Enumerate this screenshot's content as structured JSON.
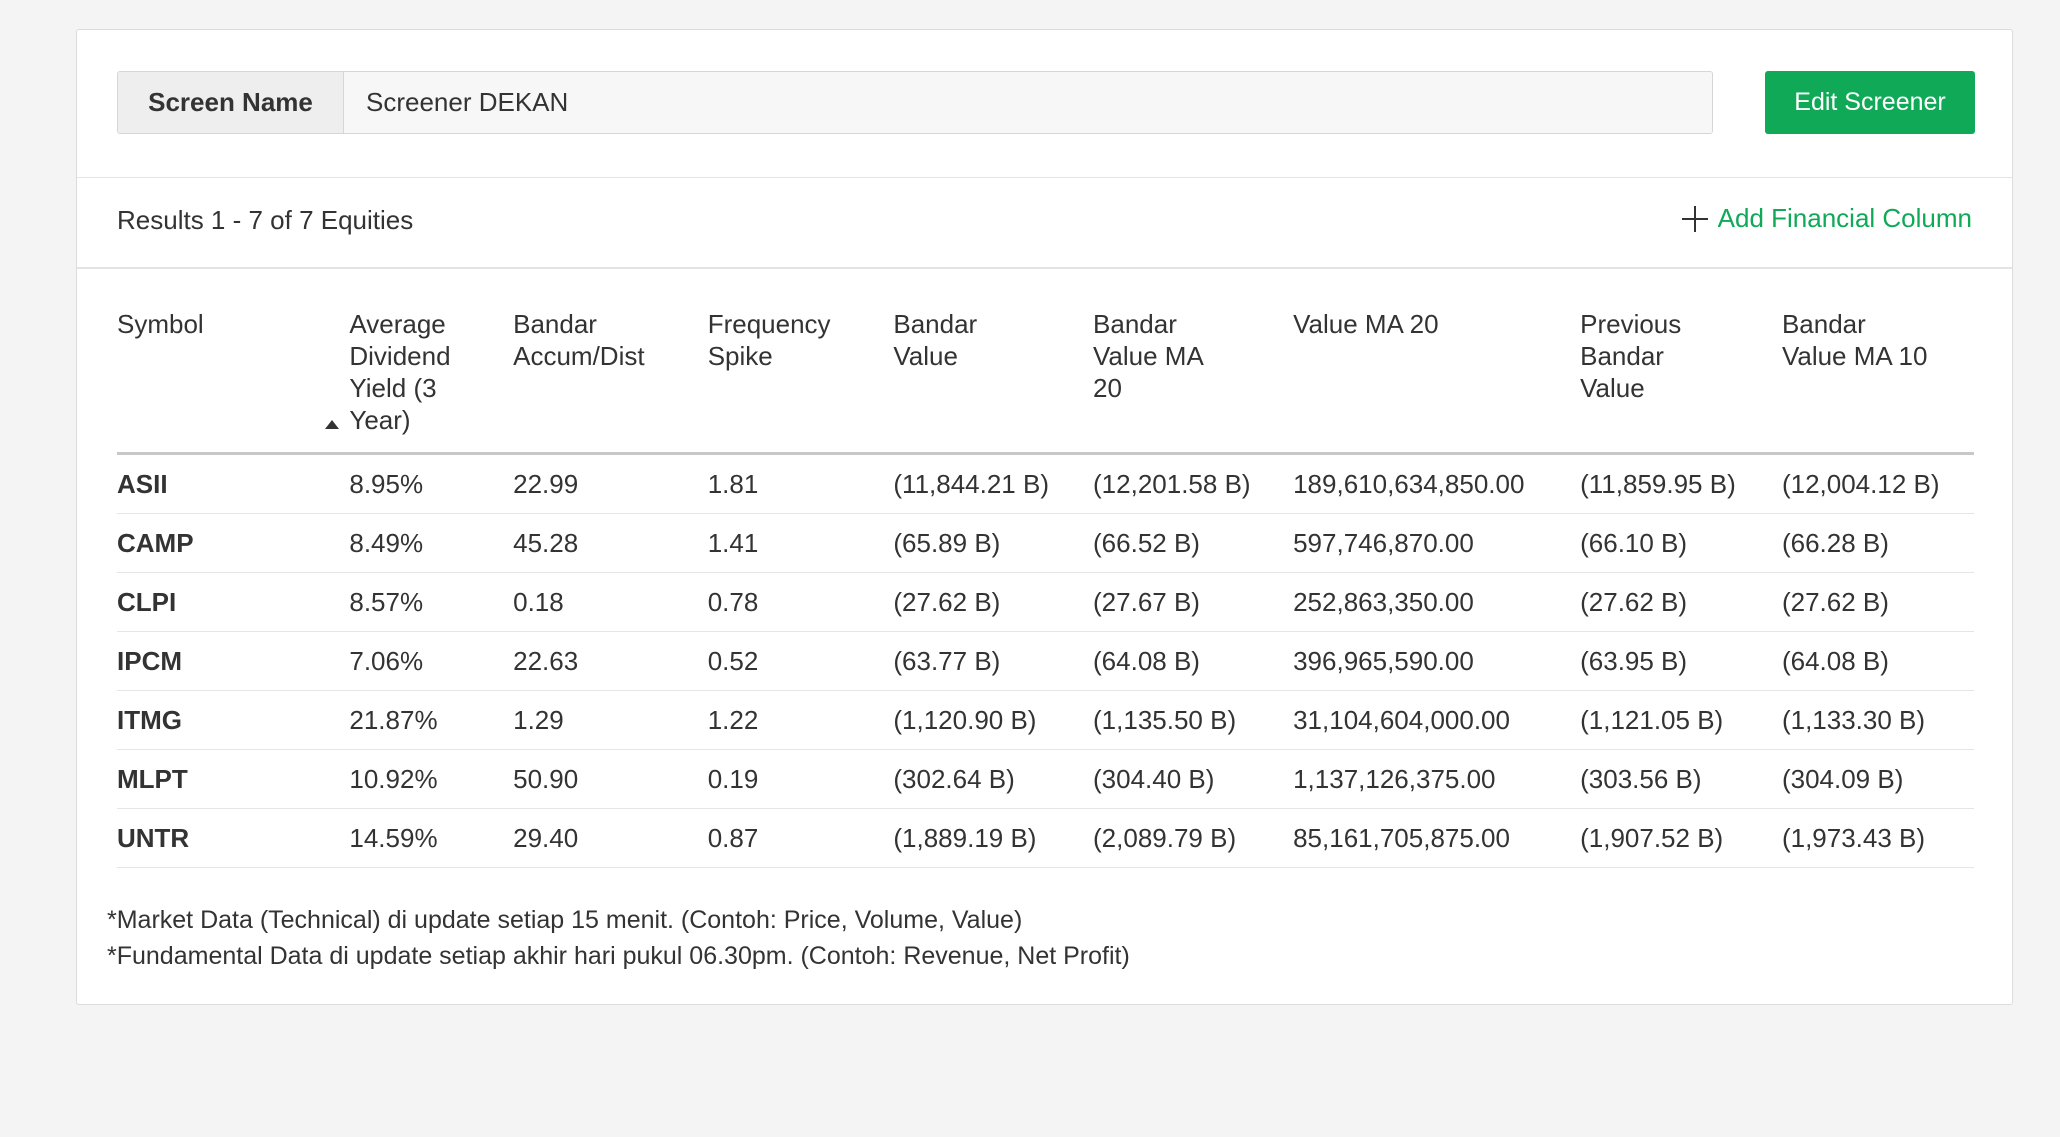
{
  "header": {
    "screen_name_label": "Screen Name",
    "screen_name_value": "Screener DEKAN",
    "edit_button": "Edit Screener"
  },
  "toolbar": {
    "results_text": "Results 1 - 7 of 7 Equities",
    "add_column_label": "Add Financial Column"
  },
  "table": {
    "columns": [
      "Symbol",
      "Average Dividend Yield (3 Year)",
      "Bandar Accum/Dist",
      "Frequency Spike",
      "Bandar Value",
      "Bandar Value MA 20",
      "Value MA 20",
      "Previous Bandar Value",
      "Bandar Value MA 10"
    ],
    "rows": [
      [
        "ASII",
        "8.95%",
        "22.99",
        "1.81",
        "(11,844.21 B)",
        "(12,201.58 B)",
        "189,610,634,850.00",
        "(11,859.95 B)",
        "(12,004.12 B)"
      ],
      [
        "CAMP",
        "8.49%",
        "45.28",
        "1.41",
        "(65.89 B)",
        "(66.52 B)",
        "597,746,870.00",
        "(66.10 B)",
        "(66.28 B)"
      ],
      [
        "CLPI",
        "8.57%",
        "0.18",
        "0.78",
        "(27.62 B)",
        "(27.67 B)",
        "252,863,350.00",
        "(27.62 B)",
        "(27.62 B)"
      ],
      [
        "IPCM",
        "7.06%",
        "22.63",
        "0.52",
        "(63.77 B)",
        "(64.08 B)",
        "396,965,590.00",
        "(63.95 B)",
        "(64.08 B)"
      ],
      [
        "ITMG",
        "21.87%",
        "1.29",
        "1.22",
        "(1,120.90 B)",
        "(1,135.50 B)",
        "31,104,604,000.00",
        "(1,121.05 B)",
        "(1,133.30 B)"
      ],
      [
        "MLPT",
        "10.92%",
        "50.90",
        "0.19",
        "(302.64 B)",
        "(304.40 B)",
        "1,137,126,375.00",
        "(303.56 B)",
        "(304.09 B)"
      ],
      [
        "UNTR",
        "14.59%",
        "29.40",
        "0.87",
        "(1,889.19 B)",
        "(2,089.79 B)",
        "85,161,705,875.00",
        "(1,907.52 B)",
        "(1,973.43 B)"
      ]
    ]
  },
  "footnotes": [
    "*Market Data (Technical) di update setiap 15 menit. (Contoh: Price, Volume, Value)",
    "*Fundamental Data di update setiap akhir hari pukul 06.30pm. (Contoh: Revenue, Net Profit)"
  ],
  "colors": {
    "accent": "#0fa957",
    "background": "#f4f4f4"
  },
  "icons": [
    "plus-icon",
    "sort-ascending-icon"
  ]
}
